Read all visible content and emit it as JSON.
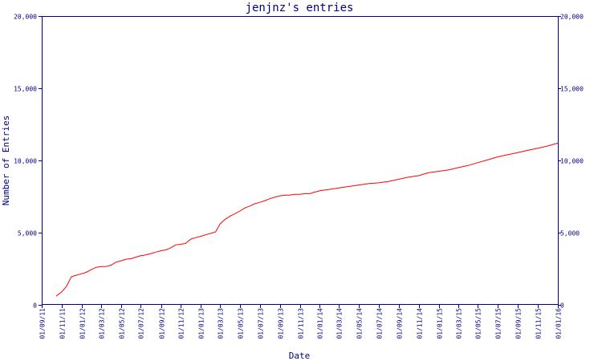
{
  "chart_data": {
    "type": "line",
    "title": "jenjnz's entries",
    "xlabel": "Date",
    "ylabel": "Number of Entries",
    "ylim": [
      0,
      20000
    ],
    "y_ticks": [
      "0",
      "5,000",
      "10,000",
      "15,000",
      "20,000"
    ],
    "x_ticks": [
      "01/09/11",
      "01/11/11",
      "01/01/12",
      "01/03/12",
      "01/05/12",
      "01/07/12",
      "01/09/12",
      "01/11/12",
      "01/01/13",
      "01/03/13",
      "01/05/13",
      "01/07/13",
      "01/09/13",
      "01/11/13",
      "01/01/14",
      "01/03/14",
      "01/05/14",
      "01/07/14",
      "01/09/14",
      "01/11/14",
      "01/01/15",
      "01/03/15",
      "01/05/15",
      "01/07/15",
      "01/09/15",
      "01/11/15",
      "01/01/16"
    ],
    "series": [
      {
        "color": "#ff0000",
        "x": [
          "2011-10-15",
          "2011-11-01",
          "2011-11-15",
          "2011-12-01",
          "2011-12-15",
          "2012-01-01",
          "2012-01-15",
          "2012-02-01",
          "2012-02-15",
          "2012-03-01",
          "2012-03-15",
          "2012-04-01",
          "2012-04-15",
          "2012-05-01",
          "2012-05-15",
          "2012-06-01",
          "2012-06-15",
          "2012-07-01",
          "2012-07-15",
          "2012-08-01",
          "2012-08-15",
          "2012-09-01",
          "2012-09-15",
          "2012-10-01",
          "2012-10-15",
          "2012-11-01",
          "2012-11-15",
          "2012-12-01",
          "2012-12-15",
          "2013-01-01",
          "2013-01-15",
          "2013-02-01",
          "2013-02-15",
          "2013-03-01",
          "2013-03-15",
          "2013-04-01",
          "2013-04-15",
          "2013-05-01",
          "2013-05-15",
          "2013-06-01",
          "2013-06-15",
          "2013-07-01",
          "2013-07-15",
          "2013-08-01",
          "2013-08-15",
          "2013-09-01",
          "2013-09-15",
          "2013-10-01",
          "2013-10-15",
          "2013-11-01",
          "2013-11-15",
          "2013-12-01",
          "2013-12-15",
          "2014-01-01",
          "2014-02-01",
          "2014-03-01",
          "2014-04-01",
          "2014-05-01",
          "2014-06-01",
          "2014-07-01",
          "2014-08-01",
          "2014-09-01",
          "2014-10-01",
          "2014-11-01",
          "2014-11-15",
          "2014-12-01",
          "2015-01-01",
          "2015-02-01",
          "2015-03-01",
          "2015-04-01",
          "2015-05-01",
          "2015-06-01",
          "2015-07-01",
          "2015-08-01",
          "2015-09-01",
          "2015-10-01",
          "2015-11-01",
          "2015-12-01",
          "2016-01-01"
        ],
        "values": [
          600,
          900,
          1250,
          1950,
          2050,
          2150,
          2250,
          2450,
          2600,
          2650,
          2650,
          2750,
          2950,
          3050,
          3150,
          3200,
          3300,
          3400,
          3450,
          3550,
          3650,
          3750,
          3800,
          3950,
          4150,
          4200,
          4250,
          4550,
          4650,
          4750,
          4850,
          4950,
          5050,
          5600,
          5900,
          6150,
          6300,
          6500,
          6700,
          6850,
          7000,
          7100,
          7200,
          7350,
          7450,
          7550,
          7600,
          7600,
          7650,
          7650,
          7700,
          7700,
          7800,
          7900,
          8000,
          8100,
          8200,
          8300,
          8400,
          8450,
          8550,
          8700,
          8850,
          8950,
          9050,
          9150,
          9250,
          9350,
          9500,
          9650,
          9850,
          10050,
          10250,
          10400,
          10550,
          10700,
          10850,
          11000,
          11200
        ]
      }
    ],
    "grid": false,
    "right_axis_mirror": true
  }
}
